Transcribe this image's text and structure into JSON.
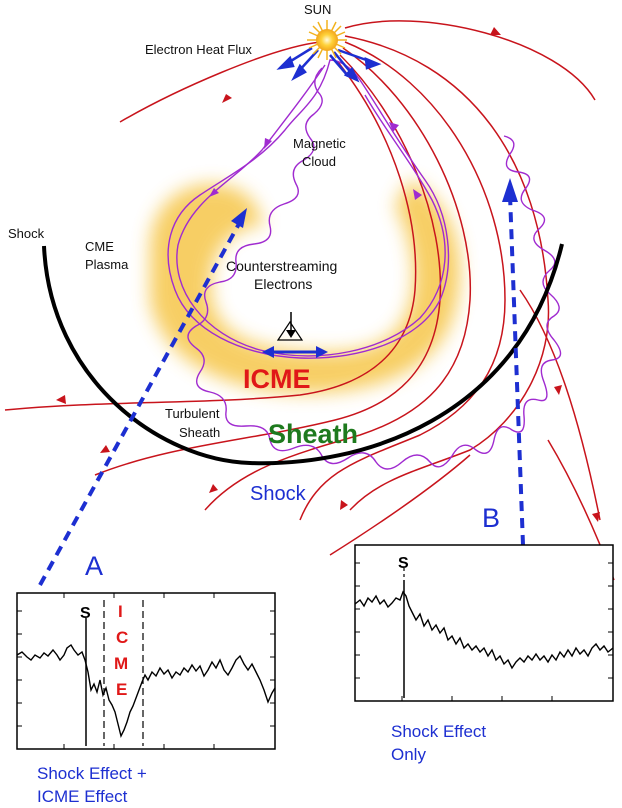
{
  "labels": {
    "sun": "SUN",
    "electron_heat_flux": "Electron Heat Flux",
    "magnetic_cloud_line1": "Magnetic",
    "magnetic_cloud_line2": "Cloud",
    "shock_left": "Shock",
    "cme_plasma_line1": "CME",
    "cme_plasma_line2": "Plasma",
    "counterstreaming_line1": "Counterstreaming",
    "counterstreaming_line2": "Electrons",
    "icme": "ICME",
    "turbulent_line1": "Turbulent",
    "turbulent_line2": "Sheath",
    "sheath": "Sheath",
    "shock_bottom": "Shock",
    "trajectory_a": "A",
    "trajectory_b": "B"
  },
  "panel_a": {
    "shock_marker": "S",
    "icme_letters": [
      "I",
      "C",
      "M",
      "E"
    ],
    "caption_line1": "Shock Effect +",
    "caption_line2": "ICME Effect"
  },
  "panel_b": {
    "shock_marker": "S",
    "caption_line1": "Shock Effect",
    "caption_line2": "Only"
  },
  "colors": {
    "field_lines": "#c8141c",
    "cloud_helix": "#a02bd0",
    "trajectory": "#1d2fd1",
    "icme_text": "#e01818",
    "sheath_text": "#1e7a1e",
    "plasma": "#f6c64a"
  }
}
